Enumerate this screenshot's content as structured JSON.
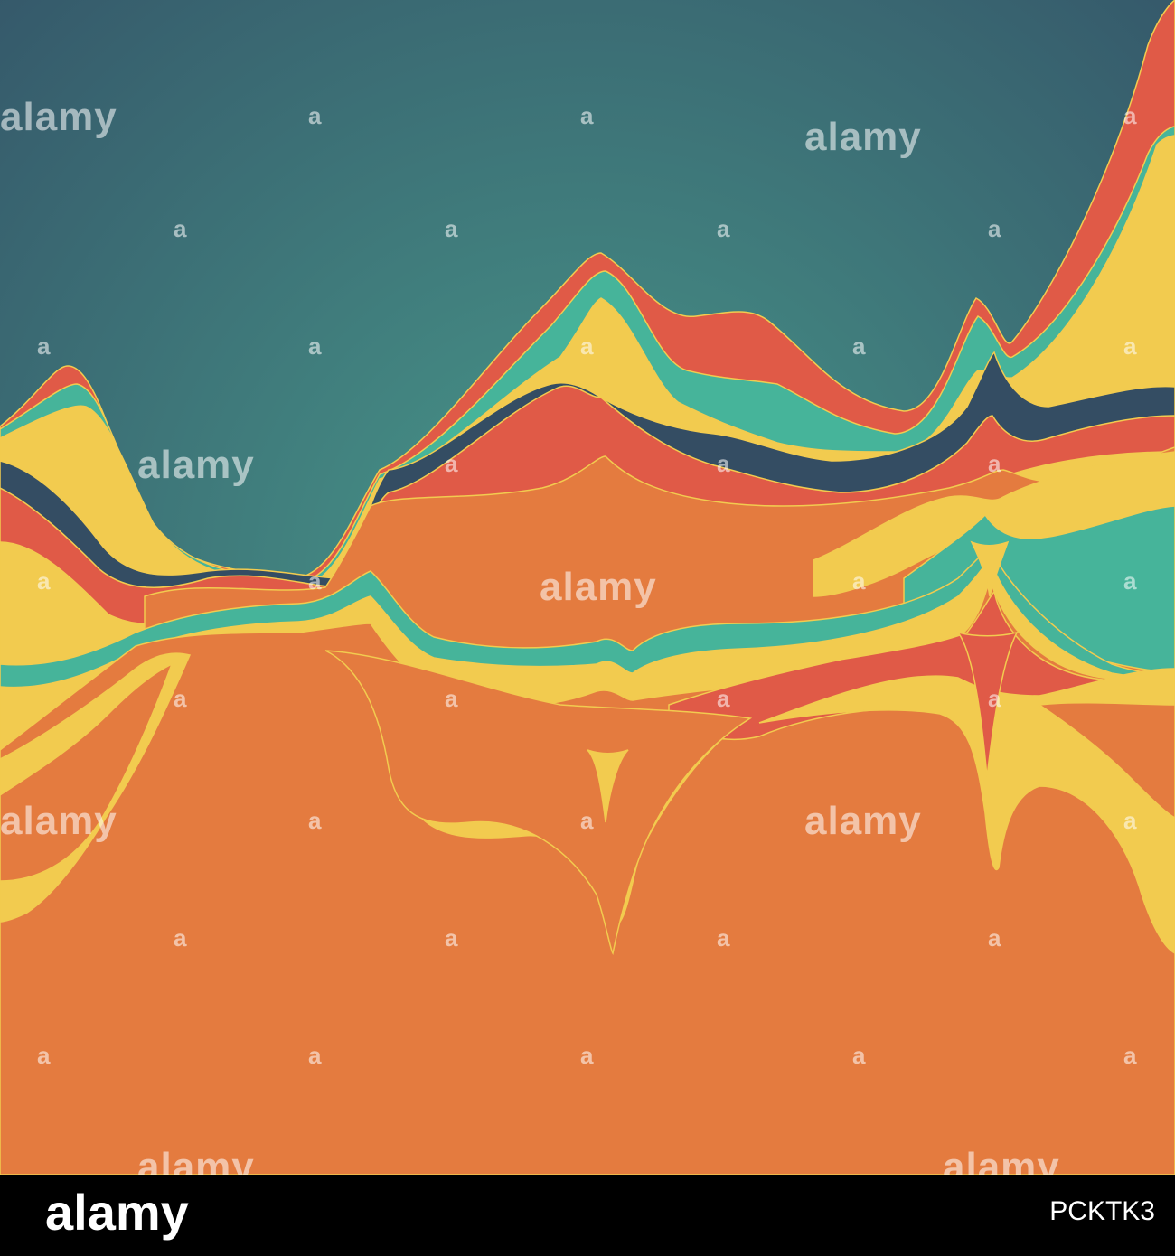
{
  "watermark": {
    "full": "alamy",
    "short": "a"
  },
  "footer": {
    "logo": "alamy",
    "image_id": "PCKTK3"
  },
  "palette": {
    "background_center": "#48988a",
    "background_edge": "#35586a",
    "yellow": "#f2cb4f",
    "red": "#e05a47",
    "teal": "#46b49a",
    "orange": "#e47b3f",
    "navy": "#344d63"
  }
}
